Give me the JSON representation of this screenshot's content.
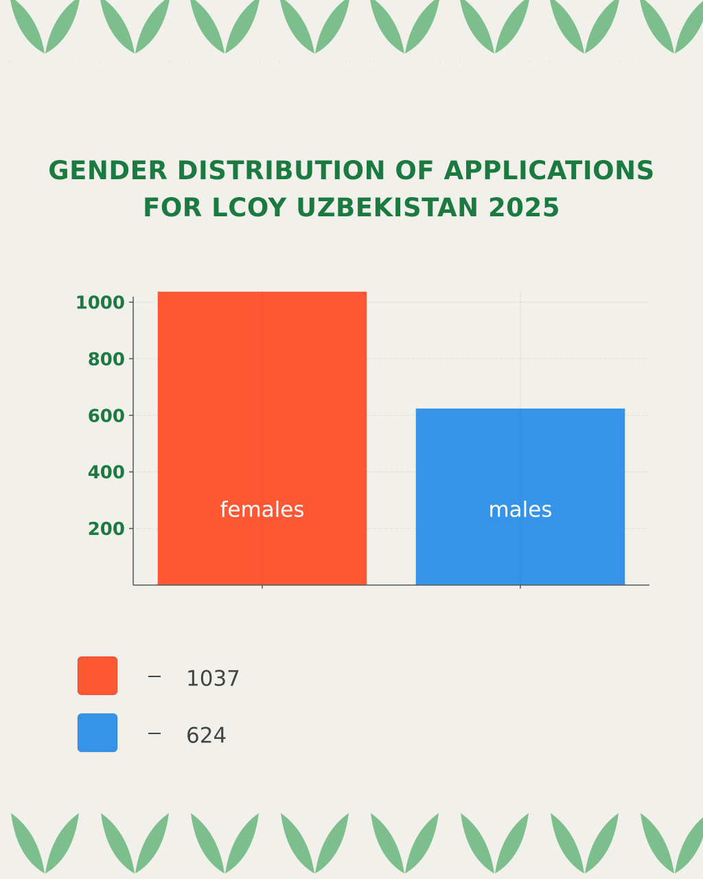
{
  "chart_data": {
    "type": "bar",
    "title": "GENDER DISTRIBUTION OF APPLICATIONS FOR LCOY UZBEKISTAN 2025",
    "categories": [
      "females",
      "males"
    ],
    "values": [
      1037,
      624
    ],
    "colors": [
      "#fe5734",
      "#3594e8"
    ],
    "ylim": [
      0,
      1040
    ],
    "yticks": [
      200,
      400,
      600,
      800,
      1000
    ],
    "grid": true
  }
}
